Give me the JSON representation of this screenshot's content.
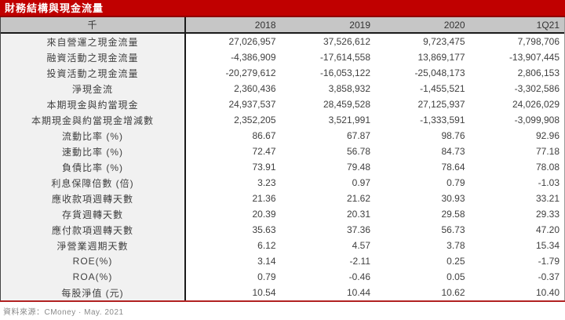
{
  "title": "財務結構與現金流量",
  "footer": {
    "source": "資料來源：CMoney · May. 2021"
  },
  "colors": {
    "title_bg": "#C00000",
    "title_text": "#FFFFFF",
    "header_bg": "#C6C6C6",
    "label_column_bg": "#F1F1F1",
    "divider_black": "#1A1A1A",
    "bottom_rule_red": "#B22222",
    "body_text": "#3F3F3F"
  },
  "table": {
    "columns": [
      "千",
      "2018",
      "2019",
      "2020",
      "1Q21"
    ],
    "rows": [
      {
        "label": "來自營運之現金流量",
        "values": [
          "27,026,957",
          "37,526,612",
          "9,723,475",
          "7,798,706"
        ]
      },
      {
        "label": "融資活動之現金流量",
        "values": [
          "-4,386,909",
          "-17,614,558",
          "13,869,177",
          "-13,907,445"
        ]
      },
      {
        "label": "投資活動之現金流量",
        "values": [
          "-20,279,612",
          "-16,053,122",
          "-25,048,173",
          "2,806,153"
        ]
      },
      {
        "label": "淨現金流",
        "values": [
          "2,360,436",
          "3,858,932",
          "-1,455,521",
          "-3,302,586"
        ]
      },
      {
        "label": "本期現金與約當現金",
        "values": [
          "24,937,537",
          "28,459,528",
          "27,125,937",
          "24,026,029"
        ]
      },
      {
        "label": "本期現金與約當現金增減數",
        "values": [
          "2,352,205",
          "3,521,991",
          "-1,333,591",
          "-3,099,908"
        ]
      },
      {
        "label": "流動比率 (%)",
        "values": [
          "86.67",
          "67.87",
          "98.76",
          "92.96"
        ]
      },
      {
        "label": "速動比率 (%)",
        "values": [
          "72.47",
          "56.78",
          "84.73",
          "77.18"
        ]
      },
      {
        "label": "負債比率 (%)",
        "values": [
          "73.91",
          "79.48",
          "78.64",
          "78.08"
        ]
      },
      {
        "label": "利息保障倍數 (倍)",
        "values": [
          "3.23",
          "0.97",
          "0.79",
          "-1.03"
        ]
      },
      {
        "label": "應收款項週轉天數",
        "values": [
          "21.36",
          "21.62",
          "30.93",
          "33.21"
        ]
      },
      {
        "label": "存貨週轉天數",
        "values": [
          "20.39",
          "20.31",
          "29.58",
          "29.33"
        ]
      },
      {
        "label": "應付款項週轉天數",
        "values": [
          "35.63",
          "37.36",
          "56.73",
          "47.20"
        ]
      },
      {
        "label": "淨營業週期天數",
        "values": [
          "6.12",
          "4.57",
          "3.78",
          "15.34"
        ]
      },
      {
        "label": "ROE(%)",
        "values": [
          "3.14",
          "-2.11",
          "0.25",
          "-1.79"
        ]
      },
      {
        "label": "ROA(%)",
        "values": [
          "0.79",
          "-0.46",
          "0.05",
          "-0.37"
        ]
      },
      {
        "label": "每股淨值 (元)",
        "values": [
          "10.54",
          "10.44",
          "10.62",
          "10.40"
        ]
      }
    ]
  },
  "chart_data": {
    "type": "table",
    "title": "財務結構與現金流量",
    "unit_note": "千",
    "columns": [
      "2018",
      "2019",
      "2020",
      "1Q21"
    ],
    "rows": [
      {
        "metric": "來自營運之現金流量",
        "values": [
          27026957,
          37526612,
          9723475,
          7798706
        ]
      },
      {
        "metric": "融資活動之現金流量",
        "values": [
          -4386909,
          -17614558,
          13869177,
          -13907445
        ]
      },
      {
        "metric": "投資活動之現金流量",
        "values": [
          -20279612,
          -16053122,
          -25048173,
          2806153
        ]
      },
      {
        "metric": "淨現金流",
        "values": [
          2360436,
          3858932,
          -1455521,
          -3302586
        ]
      },
      {
        "metric": "本期現金與約當現金",
        "values": [
          24937537,
          28459528,
          27125937,
          24026029
        ]
      },
      {
        "metric": "本期現金與約當現金增減數",
        "values": [
          2352205,
          3521991,
          -1333591,
          -3099908
        ]
      },
      {
        "metric": "流動比率 (%)",
        "values": [
          86.67,
          67.87,
          98.76,
          92.96
        ]
      },
      {
        "metric": "速動比率 (%)",
        "values": [
          72.47,
          56.78,
          84.73,
          77.18
        ]
      },
      {
        "metric": "負債比率 (%)",
        "values": [
          73.91,
          79.48,
          78.64,
          78.08
        ]
      },
      {
        "metric": "利息保障倍數 (倍)",
        "values": [
          3.23,
          0.97,
          0.79,
          -1.03
        ]
      },
      {
        "metric": "應收款項週轉天數",
        "values": [
          21.36,
          21.62,
          30.93,
          33.21
        ]
      },
      {
        "metric": "存貨週轉天數",
        "values": [
          20.39,
          20.31,
          29.58,
          29.33
        ]
      },
      {
        "metric": "應付款項週轉天數",
        "values": [
          35.63,
          37.36,
          56.73,
          47.2
        ]
      },
      {
        "metric": "淨營業週期天數",
        "values": [
          6.12,
          4.57,
          3.78,
          15.34
        ]
      },
      {
        "metric": "ROE(%)",
        "values": [
          3.14,
          -2.11,
          0.25,
          -1.79
        ]
      },
      {
        "metric": "ROA(%)",
        "values": [
          0.79,
          -0.46,
          0.05,
          -0.37
        ]
      },
      {
        "metric": "每股淨值 (元)",
        "values": [
          10.54,
          10.44,
          10.62,
          10.4
        ]
      }
    ],
    "source": "資料來源：CMoney · May. 2021"
  }
}
